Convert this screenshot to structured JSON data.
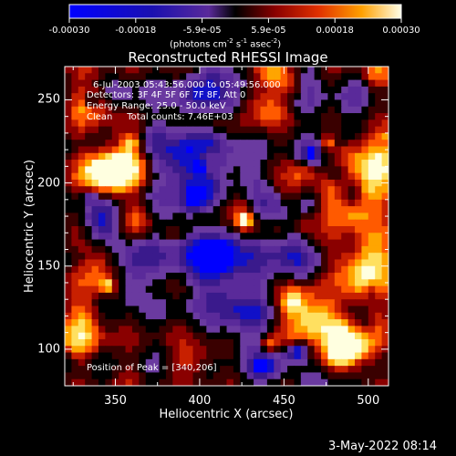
{
  "colorbar": {
    "ticks": [
      "-0.00030",
      "-0.00018",
      "-5.9e-05",
      "5.9e-05",
      "0.00018",
      "0.00030"
    ],
    "unit_prefix": "(photons cm",
    "unit_exp1": "-2",
    "unit_mid": " s",
    "unit_exp2": "-1",
    "unit_mid2": " asec",
    "unit_exp3": "-2",
    "unit_suffix": ")",
    "range": [
      -0.0003,
      0.0003
    ]
  },
  "annotations": {
    "time_range": "6-Jul-2003 05:43:56.000 to 05:49:56.000",
    "detectors": "Detectors: 3F 4F 5F 6F 7F 8F, Att 0",
    "energy": "Energy Range: 25.0 - 50.0 keV",
    "clean": "Clean     Total counts: 7.46E+03",
    "peak": "Position of Peak = [340,206]"
  },
  "footer": {
    "timestamp": "3-May-2022 08:14"
  },
  "chart_data": {
    "type": "heatmap",
    "title": "Reconstructed RHESSI Image",
    "xlabel": "Heliocentric X (arcsec)",
    "ylabel": "Heliocentric Y (arcsec)",
    "xlim": [
      320,
      512
    ],
    "ylim": [
      78,
      270
    ],
    "x_ticks": [
      "350",
      "400",
      "450",
      "500"
    ],
    "y_ticks": [
      "100",
      "150",
      "200",
      "250"
    ],
    "x_tick_values": [
      350,
      400,
      450,
      500
    ],
    "y_tick_values": [
      100,
      150,
      200,
      250
    ],
    "colormap": [
      "#0000ff",
      "#1010c8",
      "#3a1a8c",
      "#5a2a9a",
      "#6a3aa0",
      "#000000",
      "#3a0000",
      "#8a0000",
      "#c82000",
      "#ff5a00",
      "#ffa500",
      "#ffe060",
      "#ffffe0"
    ],
    "peak": [
      340,
      206
    ],
    "grid": false
  }
}
